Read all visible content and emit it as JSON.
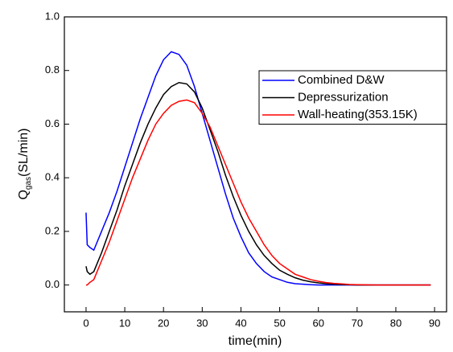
{
  "chart_data": {
    "type": "line",
    "x_label": "time(min)",
    "y_label": "Q",
    "y_label_sub": "gas",
    "y_label_unit": "(SL/min)",
    "x": [
      0,
      0.3,
      1,
      2,
      4,
      6,
      8,
      10,
      12,
      14,
      16,
      18,
      20,
      22,
      24,
      26,
      28,
      30,
      32,
      34,
      36,
      38,
      40,
      42,
      44,
      46,
      48,
      50,
      52,
      54,
      56,
      58,
      60,
      62,
      64,
      66,
      68,
      70,
      75,
      80,
      85,
      89
    ],
    "series": [
      {
        "name": "Combined D&W",
        "color": "#0000ff",
        "values": [
          0.27,
          0.15,
          0.14,
          0.13,
          0.2,
          0.27,
          0.35,
          0.44,
          0.53,
          0.62,
          0.7,
          0.78,
          0.84,
          0.87,
          0.86,
          0.82,
          0.74,
          0.64,
          0.54,
          0.44,
          0.34,
          0.25,
          0.18,
          0.12,
          0.08,
          0.05,
          0.03,
          0.02,
          0.01,
          0.005,
          0.003,
          0.001,
          0,
          0,
          0,
          0,
          0,
          0,
          0,
          0,
          0,
          0
        ]
      },
      {
        "name": "Depressurization",
        "color": "#000000",
        "values": [
          0.07,
          0.05,
          0.04,
          0.05,
          0.12,
          0.2,
          0.28,
          0.37,
          0.45,
          0.53,
          0.6,
          0.66,
          0.71,
          0.74,
          0.755,
          0.75,
          0.72,
          0.66,
          0.58,
          0.5,
          0.41,
          0.33,
          0.26,
          0.2,
          0.15,
          0.11,
          0.08,
          0.055,
          0.04,
          0.027,
          0.018,
          0.012,
          0.008,
          0.005,
          0.003,
          0.002,
          0.001,
          0,
          0,
          0,
          0,
          0
        ]
      },
      {
        "name": "Wall-heating(353.15K)",
        "color": "#ff0000",
        "values": [
          0,
          0,
          0.01,
          0.02,
          0.09,
          0.16,
          0.24,
          0.32,
          0.4,
          0.47,
          0.54,
          0.6,
          0.64,
          0.67,
          0.685,
          0.69,
          0.68,
          0.64,
          0.59,
          0.52,
          0.45,
          0.38,
          0.31,
          0.25,
          0.2,
          0.15,
          0.11,
          0.08,
          0.06,
          0.04,
          0.03,
          0.02,
          0.014,
          0.009,
          0.006,
          0.004,
          0.002,
          0.001,
          0,
          0,
          0,
          0
        ]
      }
    ],
    "xlim": [
      -5.6,
      93.1
    ],
    "ylim": [
      -0.1,
      1.0
    ],
    "xticks": [
      0,
      10,
      20,
      30,
      40,
      50,
      60,
      70,
      80,
      90
    ],
    "yticks": [
      {
        "value": 0,
        "label": "0.0"
      },
      {
        "value": 0.2,
        "label": "0.2"
      },
      {
        "value": 0.4,
        "label": "0.4"
      },
      {
        "value": 0.6,
        "label": "0.6"
      },
      {
        "value": 0.8,
        "label": "0.8"
      },
      {
        "value": 1.0,
        "label": "1.0"
      }
    ],
    "grid": false,
    "legend": "upper right"
  }
}
